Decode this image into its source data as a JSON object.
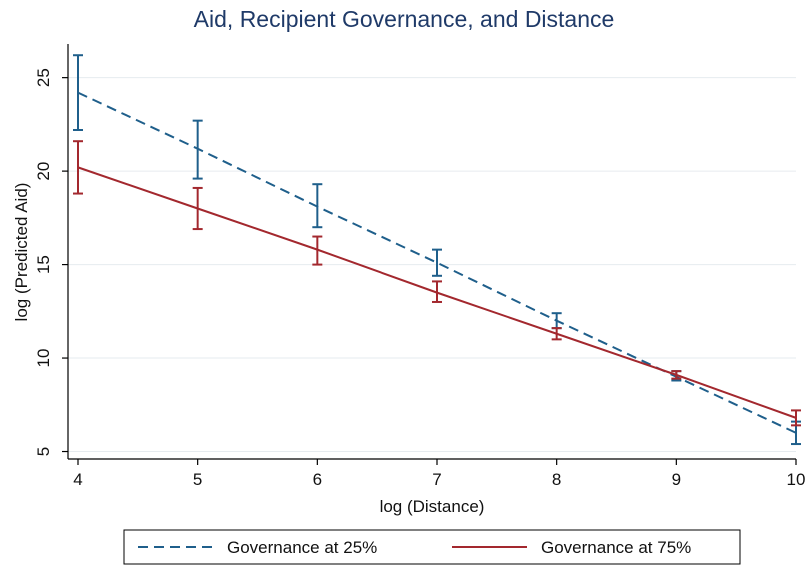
{
  "chart_data": {
    "type": "line",
    "title": "Aid, Recipient Governance, and Distance",
    "xlabel": "log (Distance)",
    "ylabel": "log (Predicted Aid)",
    "xlim": [
      4,
      10
    ],
    "ylim": [
      4.6,
      26.8
    ],
    "x_ticks": [
      4,
      5,
      6,
      7,
      8,
      9,
      10
    ],
    "y_ticks": [
      5,
      10,
      15,
      20,
      25
    ],
    "grid": "horizontal",
    "legend_position": "bottom",
    "series": [
      {
        "name": "Governance at 25%",
        "color": "#1f5f8b",
        "style": "dashed",
        "x": [
          4,
          5,
          6,
          7,
          8,
          9,
          10
        ],
        "y": [
          24.2,
          21.2,
          18.1,
          15.1,
          12.0,
          9.0,
          6.0
        ],
        "ci_low": [
          22.2,
          19.6,
          17.0,
          14.4,
          11.6,
          8.8,
          5.4
        ],
        "ci_high": [
          26.2,
          22.7,
          19.3,
          15.8,
          12.4,
          9.3,
          6.6
        ]
      },
      {
        "name": "Governance at 75%",
        "color": "#a3282e",
        "style": "solid",
        "x": [
          4,
          5,
          6,
          7,
          8,
          9,
          10
        ],
        "y": [
          20.2,
          18.0,
          15.8,
          13.5,
          11.3,
          9.1,
          6.8
        ],
        "ci_low": [
          18.8,
          16.9,
          15.0,
          13.0,
          11.0,
          8.9,
          6.4
        ],
        "ci_high": [
          21.6,
          19.1,
          16.5,
          14.1,
          11.6,
          9.3,
          7.2
        ]
      }
    ]
  }
}
